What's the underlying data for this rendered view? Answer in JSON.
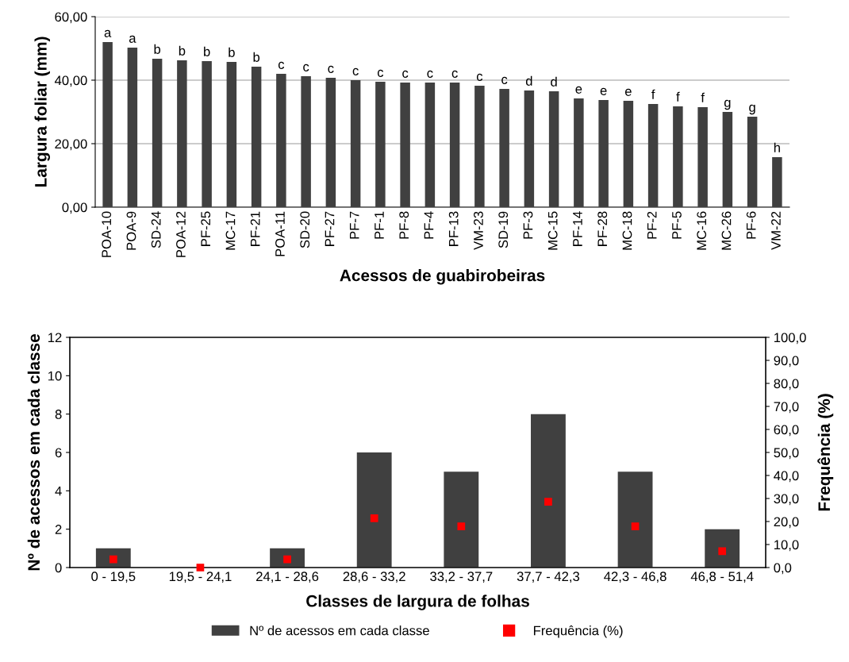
{
  "chart_data": [
    {
      "type": "bar",
      "xlabel": "Acessos de guabirobeiras",
      "ylabel": "Largura foliar (mm)",
      "categories": [
        "POA-10",
        "POA-9",
        "SD-24",
        "POA-12",
        "PF-25",
        "MC-17",
        "PF-21",
        "POA-11",
        "SD-20",
        "PF-27",
        "PF-7",
        "PF-1",
        "PF-8",
        "PF-4",
        "PF-13",
        "VM-23",
        "SD-19",
        "PF-3",
        "MC-15",
        "PF-14",
        "PF-28",
        "MC-18",
        "PF-2",
        "PF-5",
        "MC-16",
        "MC-26",
        "PF-6",
        "VM-22"
      ],
      "series": [
        {
          "color": "#404040",
          "values": [
            52.0,
            50.25,
            46.75,
            46.25,
            46.0,
            45.75,
            44.25,
            42.0,
            41.25,
            40.75,
            40.0,
            39.5,
            39.25,
            39.25,
            39.25,
            38.25,
            37.25,
            36.75,
            36.5,
            34.25,
            33.75,
            33.5,
            32.5,
            31.75,
            31.5,
            30.0,
            28.5,
            15.75
          ],
          "value_labels": [
            "a",
            "a",
            "b",
            "b",
            "b",
            "b",
            "b",
            "c",
            "c",
            "c",
            "c",
            "c",
            "c",
            "c",
            "c",
            "c",
            "c",
            "d",
            "d",
            "e",
            "e",
            "e",
            "f",
            "f",
            "f",
            "g",
            "g",
            "h"
          ]
        }
      ],
      "ylim": [
        0,
        60
      ],
      "yticks": [
        {
          "value": 0,
          "label": "0,00"
        },
        {
          "value": 20,
          "label": "20,00"
        },
        {
          "value": 40,
          "label": "40,00"
        },
        {
          "value": 60,
          "label": "60,00"
        }
      ],
      "grid": "y"
    },
    {
      "type": "bar",
      "xlabel": "Classes de largura de folhas",
      "ylabel": "Nº de acessos em cada classe",
      "y2label": "Frequência (%)",
      "categories": [
        "0 - 19,5",
        "19,5 - 24,1",
        "24,1 - 28,6",
        "28,6 - 33,2",
        "33,2 - 37,7",
        "37,7 - 42,3",
        "42,3 - 46,8",
        "46,8 - 51,4"
      ],
      "series": [
        {
          "name": "Nº de acessos em cada classe",
          "color": "#404040",
          "values": [
            1,
            0,
            1,
            6,
            5,
            8,
            5,
            2
          ]
        },
        {
          "name": "Frequência (%)",
          "type": "scatter",
          "axis": "y2",
          "color": "#ff0000",
          "values": [
            3.6,
            0.0,
            3.6,
            21.4,
            17.9,
            28.6,
            17.9,
            7.1
          ]
        }
      ],
      "ylim": [
        0,
        12
      ],
      "yticks": [
        0,
        2,
        4,
        6,
        8,
        10,
        12
      ],
      "y2lim": [
        0,
        100
      ],
      "y2ticks": [
        {
          "value": 0,
          "label": "0,0"
        },
        {
          "value": 10,
          "label": "10,0"
        },
        {
          "value": 20,
          "label": "20,0"
        },
        {
          "value": 30,
          "label": "30,0"
        },
        {
          "value": 40,
          "label": "40,0"
        },
        {
          "value": 50,
          "label": "50,0"
        },
        {
          "value": 60,
          "label": "60,0"
        },
        {
          "value": 70,
          "label": "70,0"
        },
        {
          "value": 80,
          "label": "80,0"
        },
        {
          "value": 90,
          "label": "90,0"
        },
        {
          "value": 100,
          "label": "100,0"
        }
      ],
      "marker": "square",
      "legend": "bottom",
      "grid": false
    }
  ]
}
